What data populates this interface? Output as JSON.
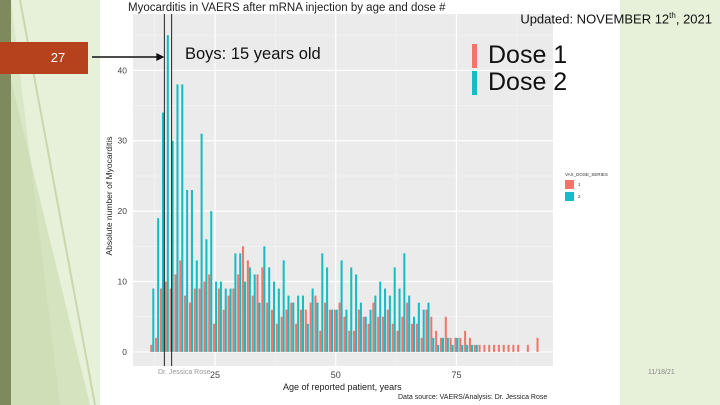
{
  "slide": {
    "number": "27",
    "updated_prefix": "Updated: NOVEMBER 12",
    "updated_sup": "th",
    "updated_suffix": ", 2021",
    "footer_date": "11/18/21",
    "presenter": "Dr. Jessica Rose",
    "annotation": "Boys: 15 years old",
    "dose_legend": [
      {
        "label": "Dose 1",
        "color": "#f0766c"
      },
      {
        "label": "Dose 2",
        "color": "#14bdc4"
      }
    ]
  },
  "chart_data": {
    "type": "bar",
    "title": "Myocarditis in VAERS after mRNA injection by age and dose #",
    "xlabel": "Age of reported patient, years",
    "ylabel": "Absolute number of Myocarditis",
    "source": "Data source: VAERS/Analysis: Dr. Jessica Rose",
    "xlim": [
      8,
      95
    ],
    "ylim": [
      -2,
      48
    ],
    "xticks": [
      25,
      50,
      75
    ],
    "yticks": [
      0,
      10,
      20,
      30,
      40
    ],
    "grid": true,
    "legend_title": "VAX_DOSE_SERIES",
    "legend_placement": "right",
    "reference_lines_x": [
      14.5,
      16
    ],
    "x": [
      12,
      13,
      14,
      15,
      16,
      17,
      18,
      19,
      20,
      21,
      22,
      23,
      24,
      25,
      26,
      27,
      28,
      29,
      30,
      31,
      32,
      33,
      34,
      35,
      36,
      37,
      38,
      39,
      40,
      41,
      42,
      43,
      44,
      45,
      46,
      47,
      48,
      49,
      50,
      51,
      52,
      53,
      54,
      55,
      56,
      57,
      58,
      59,
      60,
      61,
      62,
      63,
      64,
      65,
      66,
      67,
      68,
      69,
      70,
      71,
      72,
      73,
      74,
      75,
      76,
      77,
      78,
      79,
      80,
      81,
      82,
      83,
      84,
      85,
      86,
      87,
      88,
      90,
      92
    ],
    "series": [
      {
        "name": "1",
        "color": "#f0766c",
        "values": [
          1,
          2,
          9,
          10,
          9,
          11,
          13,
          8,
          7,
          9,
          9,
          10,
          11,
          4,
          9,
          6,
          8,
          9,
          11,
          15,
          13,
          8,
          11,
          12,
          7,
          6,
          4,
          5,
          6,
          7,
          4,
          6,
          6,
          7,
          8,
          3,
          7,
          6,
          6,
          7,
          5,
          3,
          3,
          6,
          5,
          4,
          7,
          5,
          5,
          6,
          4,
          3,
          5,
          7,
          4,
          4,
          2,
          6,
          5,
          3,
          2,
          5,
          2,
          2,
          2,
          3,
          2,
          1,
          1,
          1,
          1,
          1,
          1,
          1,
          1,
          1,
          1,
          1,
          2
        ]
      },
      {
        "name": "2",
        "color": "#14bdc4",
        "values": [
          9,
          19,
          34,
          45,
          30,
          38,
          38,
          23,
          23,
          13,
          31,
          16,
          20,
          10,
          10,
          9,
          9,
          14,
          14,
          10,
          12,
          11,
          7,
          15,
          12,
          10,
          9,
          13,
          8,
          7,
          8,
          8,
          4,
          9,
          7,
          14,
          12,
          6,
          6,
          13,
          6,
          12,
          11,
          7,
          5,
          6,
          8,
          10,
          9,
          8,
          12,
          9,
          14,
          8,
          5,
          7,
          6,
          7,
          2,
          1,
          2,
          2,
          1,
          2,
          1,
          1,
          1,
          1,
          0,
          0,
          0,
          0,
          0,
          0,
          0,
          0,
          0,
          0,
          0
        ]
      }
    ],
    "legend_entries": [
      "1",
      "2"
    ]
  }
}
